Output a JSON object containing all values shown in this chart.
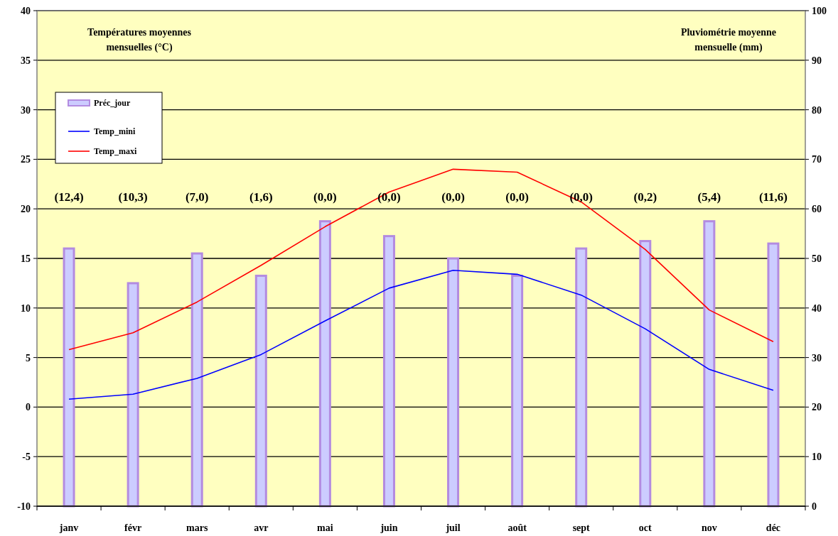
{
  "chart_data": {
    "type": "line",
    "ylabel": "Températures moyennes mensuelles (°C)",
    "y2label": "Pluviométrie moyenne mensuelle (mm)",
    "categories": [
      "janv",
      "févr",
      "mars",
      "avr",
      "mai",
      "juin",
      "juil",
      "août",
      "sept",
      "oct",
      "nov",
      "déc"
    ],
    "series": [
      {
        "name": "Préc_jour",
        "type": "bar",
        "axis": "y2",
        "color": "#ccccff",
        "values": [
          52,
          45,
          51,
          46.5,
          57.5,
          54.5,
          50,
          46.5,
          52,
          53.5,
          57.5,
          53
        ]
      },
      {
        "name": "Temp_mini",
        "color": "#0000ff",
        "values": [
          0.8,
          1.3,
          2.9,
          5.3,
          8.7,
          12,
          13.8,
          13.4,
          11.3,
          7.9,
          3.8,
          1.7
        ]
      },
      {
        "name": "Temp_maxi",
        "color": "#ff0000",
        "values": [
          5.8,
          7.5,
          10.6,
          14.3,
          18.2,
          21.7,
          24,
          23.7,
          20.7,
          15.9,
          9.8,
          6.6
        ]
      }
    ],
    "ylim": [
      -10,
      40
    ],
    "yticks": [
      -10,
      -5,
      0,
      5,
      10,
      15,
      20,
      25,
      30,
      35,
      40
    ],
    "y2lim": [
      0,
      100
    ],
    "y2ticks": [
      0,
      10,
      20,
      30,
      40,
      50,
      60,
      70,
      80,
      90,
      100
    ],
    "annotations": [
      "(12,4)",
      "(10,3)",
      "(7,0)",
      "(1,6)",
      "(0,0)",
      "(0,0)",
      "(0,0)",
      "(0,0)",
      "(0,0)",
      "(0,2)",
      "(5,4)",
      "(11,6)"
    ],
    "grid": "y",
    "legend": "top left",
    "marker": "none",
    "line_style": "solid"
  }
}
